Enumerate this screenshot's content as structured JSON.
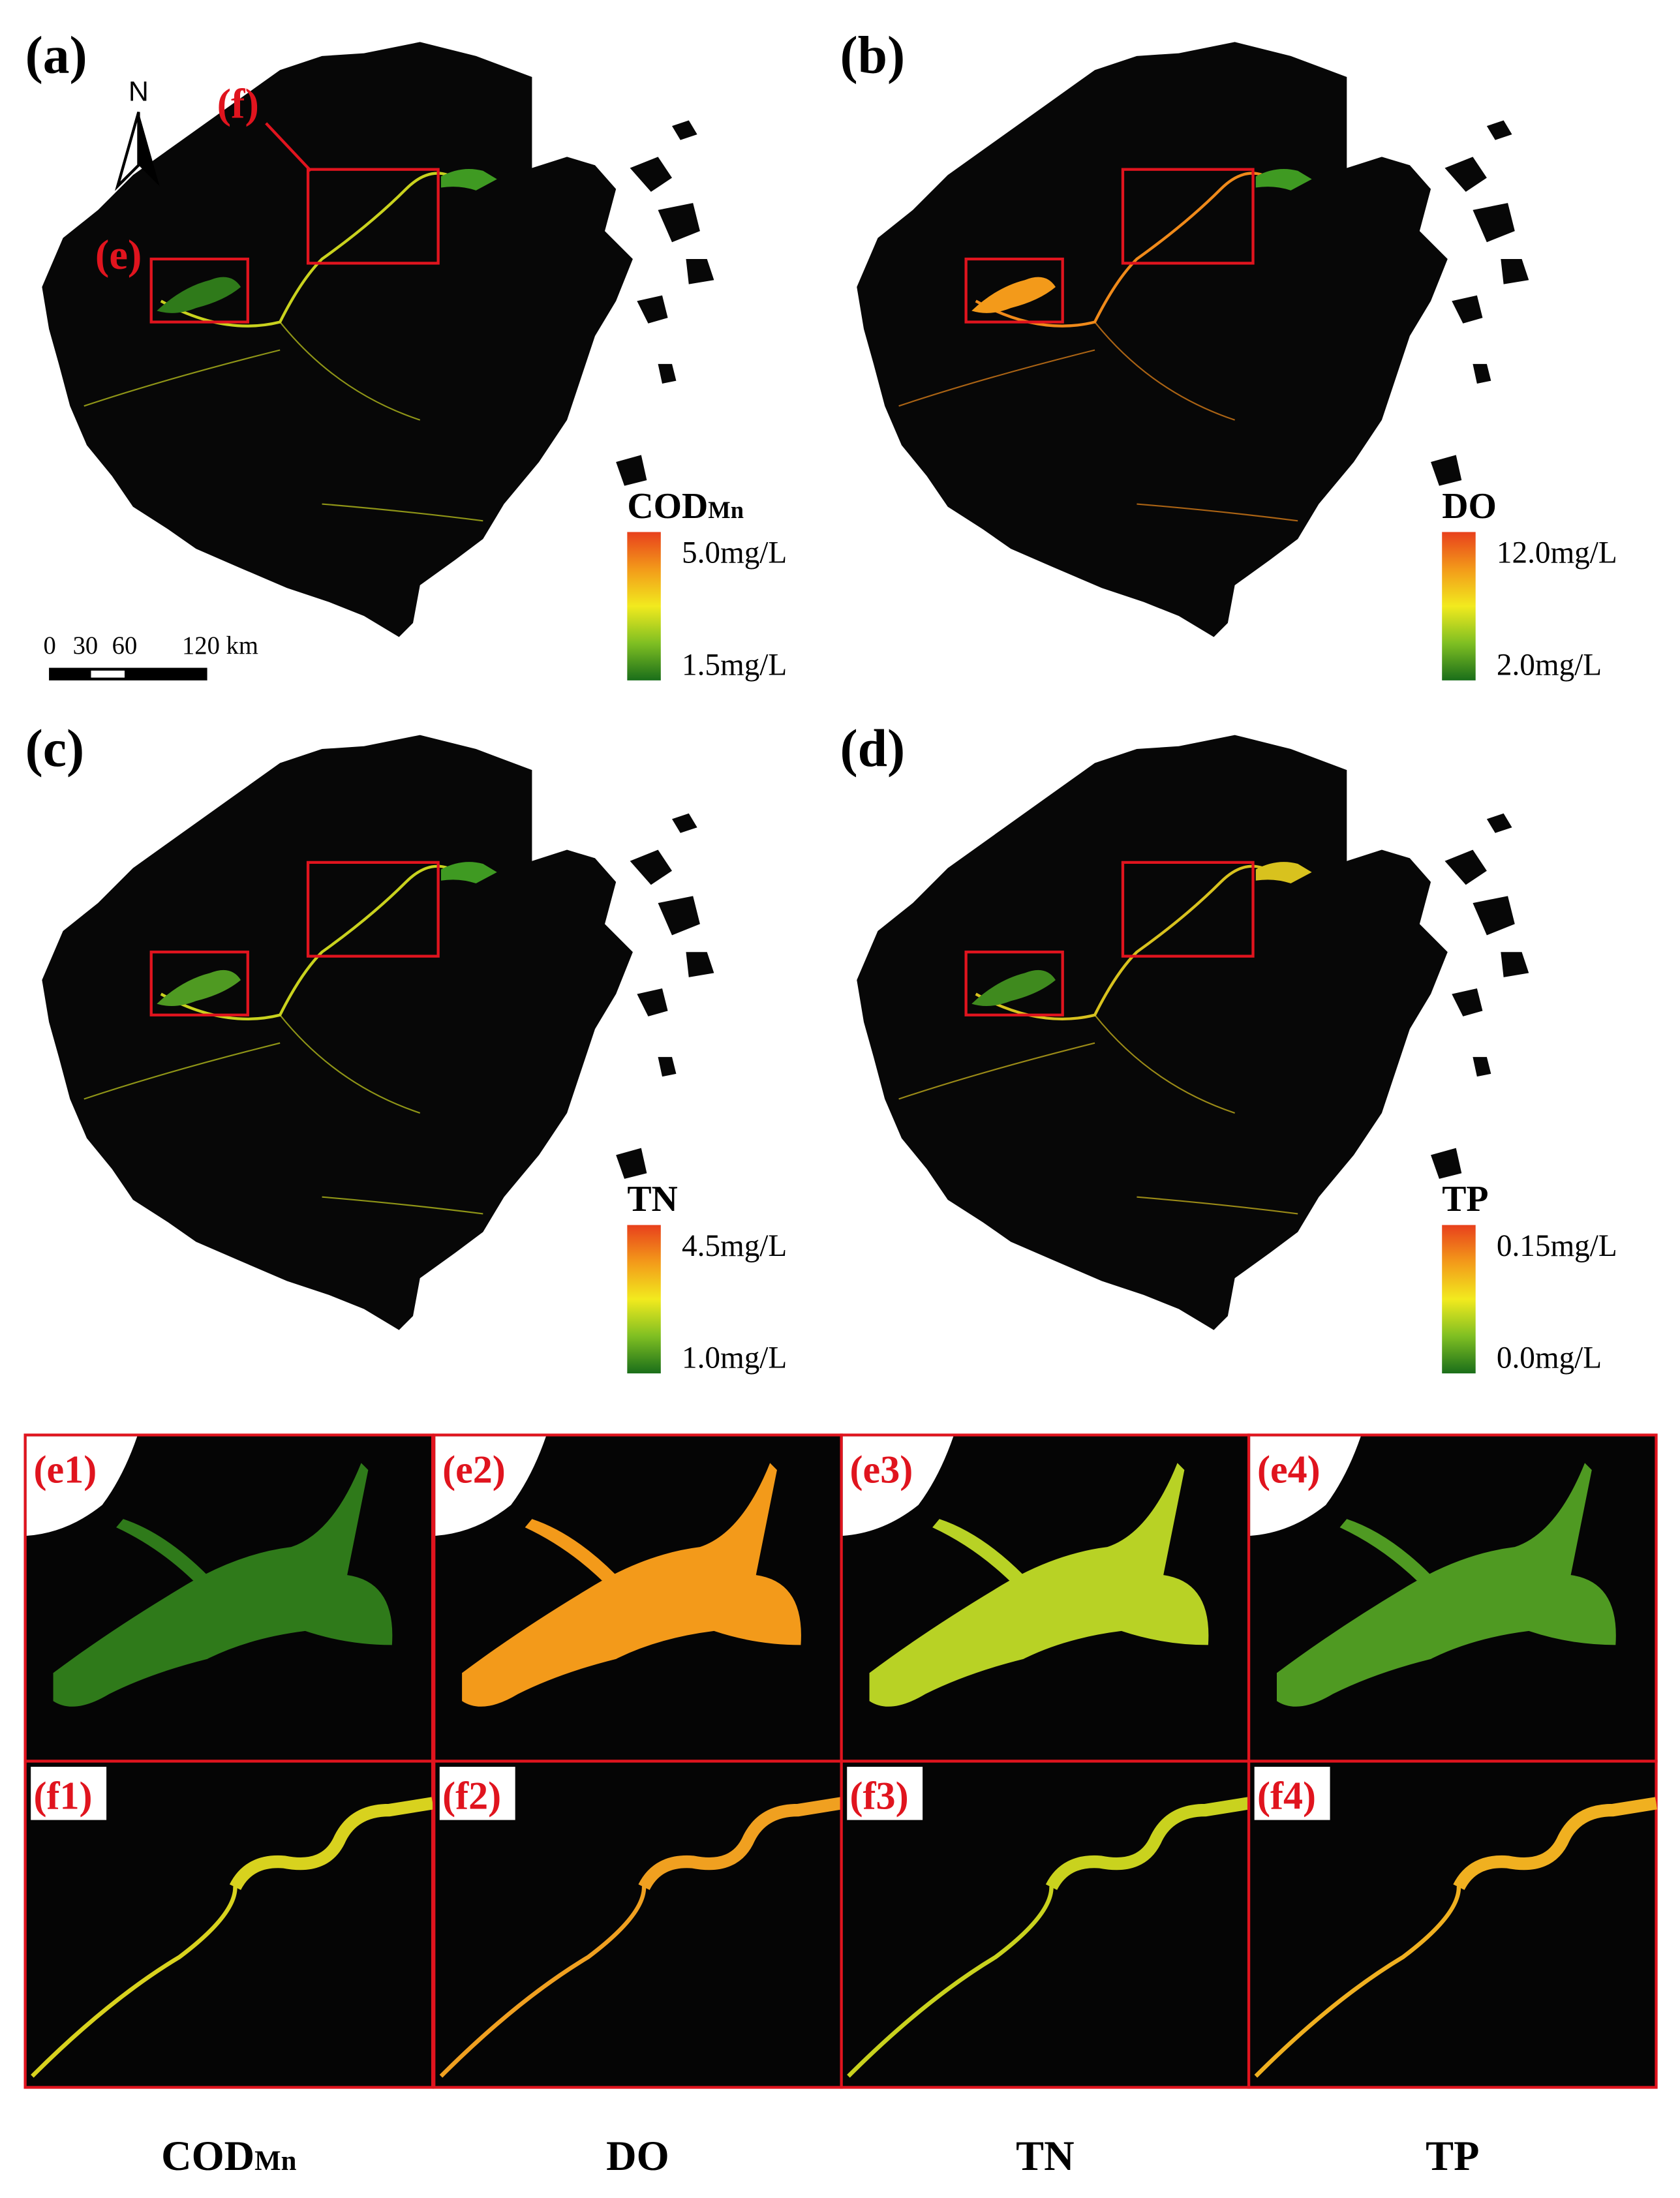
{
  "panels": [
    {
      "label": "(a)",
      "legend": {
        "title": "COD",
        "title_sub": "Mn",
        "max": "5.0mg/L",
        "min": "1.5mg/L"
      }
    },
    {
      "label": "(b)",
      "legend": {
        "title": "DO",
        "max": "12.0mg/L",
        "min": "2.0mg/L"
      }
    },
    {
      "label": "(c)",
      "legend": {
        "title": "TN",
        "max": "4.5mg/L",
        "min": "1.0mg/L"
      }
    },
    {
      "label": "(d)",
      "legend": {
        "title": "TP",
        "max": "0.15mg/L",
        "min": "0.0mg/L"
      }
    }
  ],
  "north": "N",
  "callouts": {
    "f": "(f)",
    "e": "(e)"
  },
  "scale_bar": [
    "0",
    "30",
    "60",
    "120 km"
  ],
  "insets": {
    "e": [
      "(e1)",
      "(e2)",
      "(e3)",
      "(e4)"
    ],
    "f": [
      "(f1)",
      "(f2)",
      "(f3)",
      "(f4)"
    ]
  },
  "columns": [
    {
      "title": "COD",
      "sub": "Mn"
    },
    {
      "title": "DO"
    },
    {
      "title": "TN"
    },
    {
      "title": "TP"
    }
  ]
}
